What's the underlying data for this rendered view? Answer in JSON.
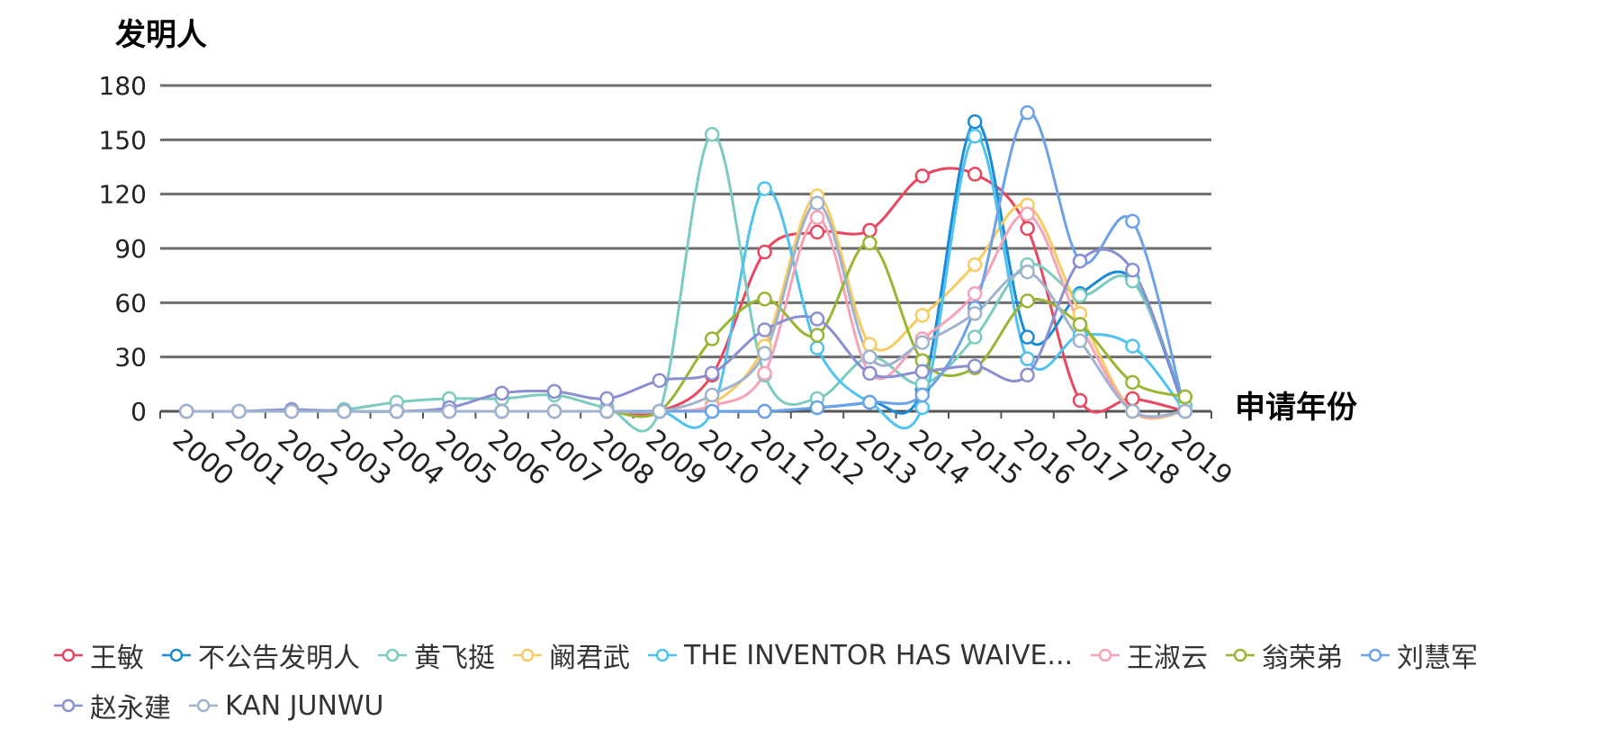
{
  "chart_data": {
    "type": "line",
    "title": "",
    "xlabel": "申请年份",
    "ylabel": "发明人",
    "ylim": [
      0,
      180
    ],
    "yticks": [
      "0",
      "30",
      "60",
      "90",
      "120",
      "150",
      "180"
    ],
    "grid": true,
    "legend_position": "bottom-left",
    "categories": [
      "2000",
      "2001",
      "2002",
      "2003",
      "2004",
      "2005",
      "2006",
      "2007",
      "2008",
      "2009",
      "2010",
      "2011",
      "2012",
      "2013",
      "2014",
      "2015",
      "2016",
      "2017",
      "2018",
      "2019"
    ],
    "series": [
      {
        "name": "王敏",
        "color": "#e8475f",
        "values": [
          0,
          0,
          0,
          0,
          0,
          0,
          0,
          0,
          0,
          0,
          20,
          88,
          99,
          100,
          130,
          131,
          101,
          6,
          7,
          0
        ]
      },
      {
        "name": "不公告发明人",
        "color": "#1b8bd6",
        "values": [
          0,
          0,
          0,
          0,
          0,
          0,
          0,
          0,
          0,
          0,
          0,
          0,
          2,
          5,
          12,
          160,
          41,
          65,
          73,
          0
        ]
      },
      {
        "name": "黄飞挺",
        "color": "#7ccbc0",
        "values": [
          0,
          0,
          0,
          1,
          5,
          7,
          7,
          9,
          2,
          0,
          153,
          20,
          7,
          30,
          15,
          41,
          81,
          64,
          72,
          3
        ]
      },
      {
        "name": "阚君武",
        "color": "#f6cc62",
        "values": [
          0,
          0,
          0,
          0,
          0,
          0,
          0,
          0,
          0,
          0,
          4,
          36,
          119,
          37,
          53,
          81,
          114,
          54,
          0,
          0
        ]
      },
      {
        "name": "THE INVENTOR HAS WAIVE...",
        "color": "#4fc2f0",
        "values": [
          0,
          0,
          0,
          0,
          0,
          0,
          0,
          0,
          0,
          0,
          0,
          123,
          35,
          5,
          2,
          152,
          29,
          42,
          36,
          0
        ]
      },
      {
        "name": "王淑云",
        "color": "#f5a3b5",
        "values": [
          0,
          0,
          0,
          0,
          0,
          0,
          0,
          0,
          0,
          0,
          3,
          21,
          107,
          21,
          40,
          65,
          109,
          48,
          0,
          0
        ]
      },
      {
        "name": "翁荣弟",
        "color": "#98b633",
        "values": [
          0,
          0,
          0,
          0,
          0,
          0,
          0,
          0,
          0,
          0,
          40,
          62,
          42,
          93,
          28,
          24,
          61,
          48,
          16,
          8
        ]
      },
      {
        "name": "刘慧军",
        "color": "#6ba2e8",
        "values": [
          0,
          0,
          0,
          0,
          0,
          0,
          0,
          0,
          0,
          0,
          0,
          0,
          2,
          5,
          9,
          57,
          165,
          83,
          105,
          0
        ]
      },
      {
        "name": "赵永建",
        "color": "#8a8fd0",
        "values": [
          0,
          0,
          1,
          0,
          0,
          2,
          10,
          11,
          7,
          17,
          21,
          45,
          51,
          21,
          22,
          25,
          20,
          83,
          78,
          0
        ]
      },
      {
        "name": "KAN JUNWU",
        "color": "#9fb3cf",
        "values": [
          0,
          0,
          0,
          0,
          0,
          0,
          0,
          0,
          0,
          0,
          9,
          32,
          115,
          30,
          38,
          54,
          77,
          39,
          0,
          0
        ]
      }
    ]
  }
}
